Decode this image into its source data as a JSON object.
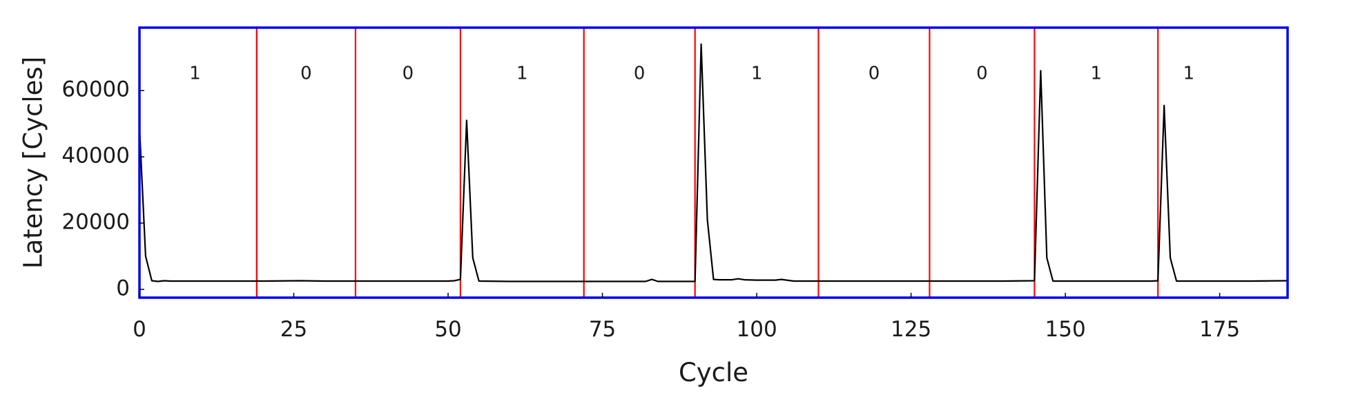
{
  "chart_data": {
    "type": "line",
    "title": "",
    "xlabel": "Cycle",
    "ylabel": "Latency [Cycles]",
    "xlim": [
      0,
      186
    ],
    "ylim": [
      -2500,
      79000
    ],
    "x_ticks": [
      0,
      25,
      50,
      75,
      100,
      125,
      150,
      175
    ],
    "y_ticks": [
      0,
      20000,
      40000,
      60000
    ],
    "grid": false,
    "frame_color": "#0000ee",
    "line_color": "#000000",
    "boundary_color": "#ff0000",
    "series": [
      {
        "x": [
          0,
          1,
          2,
          3,
          4,
          5,
          10,
          20,
          26,
          30,
          40,
          50,
          51,
          52,
          53,
          54,
          55,
          60,
          70,
          80,
          82,
          83,
          84,
          89,
          90,
          91,
          92,
          93,
          94,
          96,
          97,
          98,
          100,
          103,
          104,
          106,
          110,
          120,
          130,
          140,
          145,
          146,
          147,
          148,
          150,
          160,
          164,
          165,
          166,
          167,
          168,
          170,
          180,
          186
        ],
        "y": [
          49000,
          10000,
          2600,
          2400,
          2600,
          2500,
          2500,
          2500,
          2600,
          2500,
          2500,
          2500,
          2600,
          3000,
          51000,
          9500,
          2500,
          2400,
          2400,
          2400,
          2400,
          3000,
          2400,
          2400,
          2400,
          74000,
          21000,
          3000,
          2900,
          2900,
          3200,
          2900,
          2800,
          2800,
          3000,
          2500,
          2500,
          2500,
          2500,
          2500,
          2600,
          66000,
          9500,
          2500,
          2500,
          2500,
          2500,
          2600,
          55500,
          9500,
          2500,
          2500,
          2500,
          2600
        ]
      }
    ],
    "boundaries": [
      19,
      35,
      52,
      72,
      90,
      110,
      128,
      145,
      165
    ],
    "bit_labels": [
      {
        "x": 9,
        "text": "1"
      },
      {
        "x": 27,
        "text": "0"
      },
      {
        "x": 43.5,
        "text": "0"
      },
      {
        "x": 62,
        "text": "1"
      },
      {
        "x": 81,
        "text": "0"
      },
      {
        "x": 100,
        "text": "1"
      },
      {
        "x": 119,
        "text": "0"
      },
      {
        "x": 136.5,
        "text": "0"
      },
      {
        "x": 155,
        "text": "1"
      },
      {
        "x": 170,
        "text": "1"
      }
    ],
    "bit_label_y": 65000
  }
}
